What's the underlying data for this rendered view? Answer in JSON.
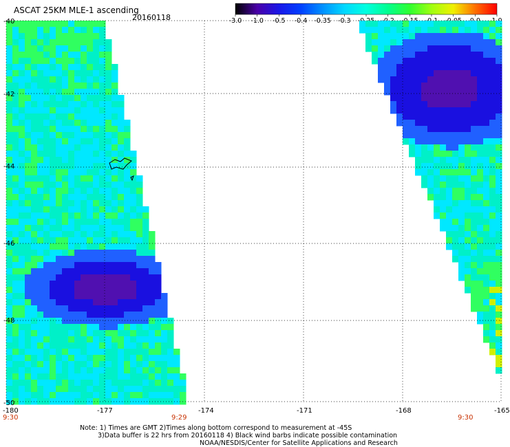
{
  "header": {
    "title": "ASCAT 25KM MLE-1 ascending",
    "date": "20160118"
  },
  "colorbar": {
    "labels": [
      "-3.0",
      "-1.0",
      "-0.5",
      "-0.4",
      "-0.35",
      "-0.3",
      "-0.25",
      "-0.2",
      "-0.15",
      "-0.1",
      "-0.05",
      "0.0",
      "1.0"
    ],
    "colors": [
      "#000000",
      "#4a00a8",
      "#1a18e8",
      "#0040ff",
      "#0090ff",
      "#00d8ff",
      "#00ffe0",
      "#00ff90",
      "#30ff30",
      "#a0ff10",
      "#f0f000",
      "#ff7000",
      "#ff0000"
    ]
  },
  "axes": {
    "y_labels": [
      "-40",
      "-42",
      "-44",
      "-46",
      "-48",
      "-50"
    ],
    "x_labels": [
      "-180",
      "-177",
      "-174",
      "-171",
      "-168",
      "-165"
    ],
    "time_labels": [
      "9:30",
      "9:29",
      "9:30"
    ],
    "time_color": "#c83000"
  },
  "footer": {
    "line1": "Note: 1) Times are GMT 2)Times along bottom correspond to measurement at -45S",
    "line2": "3)Data buffer is 22 hrs from 20160118 4) Black wind barbs indicate possible contamination",
    "line3": "NOAA/NESDIS/Center for Satellite Applications and Research"
  },
  "map_colors": {
    "deep_blue": "#1a10e0",
    "blue": "#2060ff",
    "cyan": "#00e8ff",
    "teal": "#00f0c8",
    "green": "#30ff60",
    "yellow": "#d0f000",
    "purple": "#5010b0"
  }
}
